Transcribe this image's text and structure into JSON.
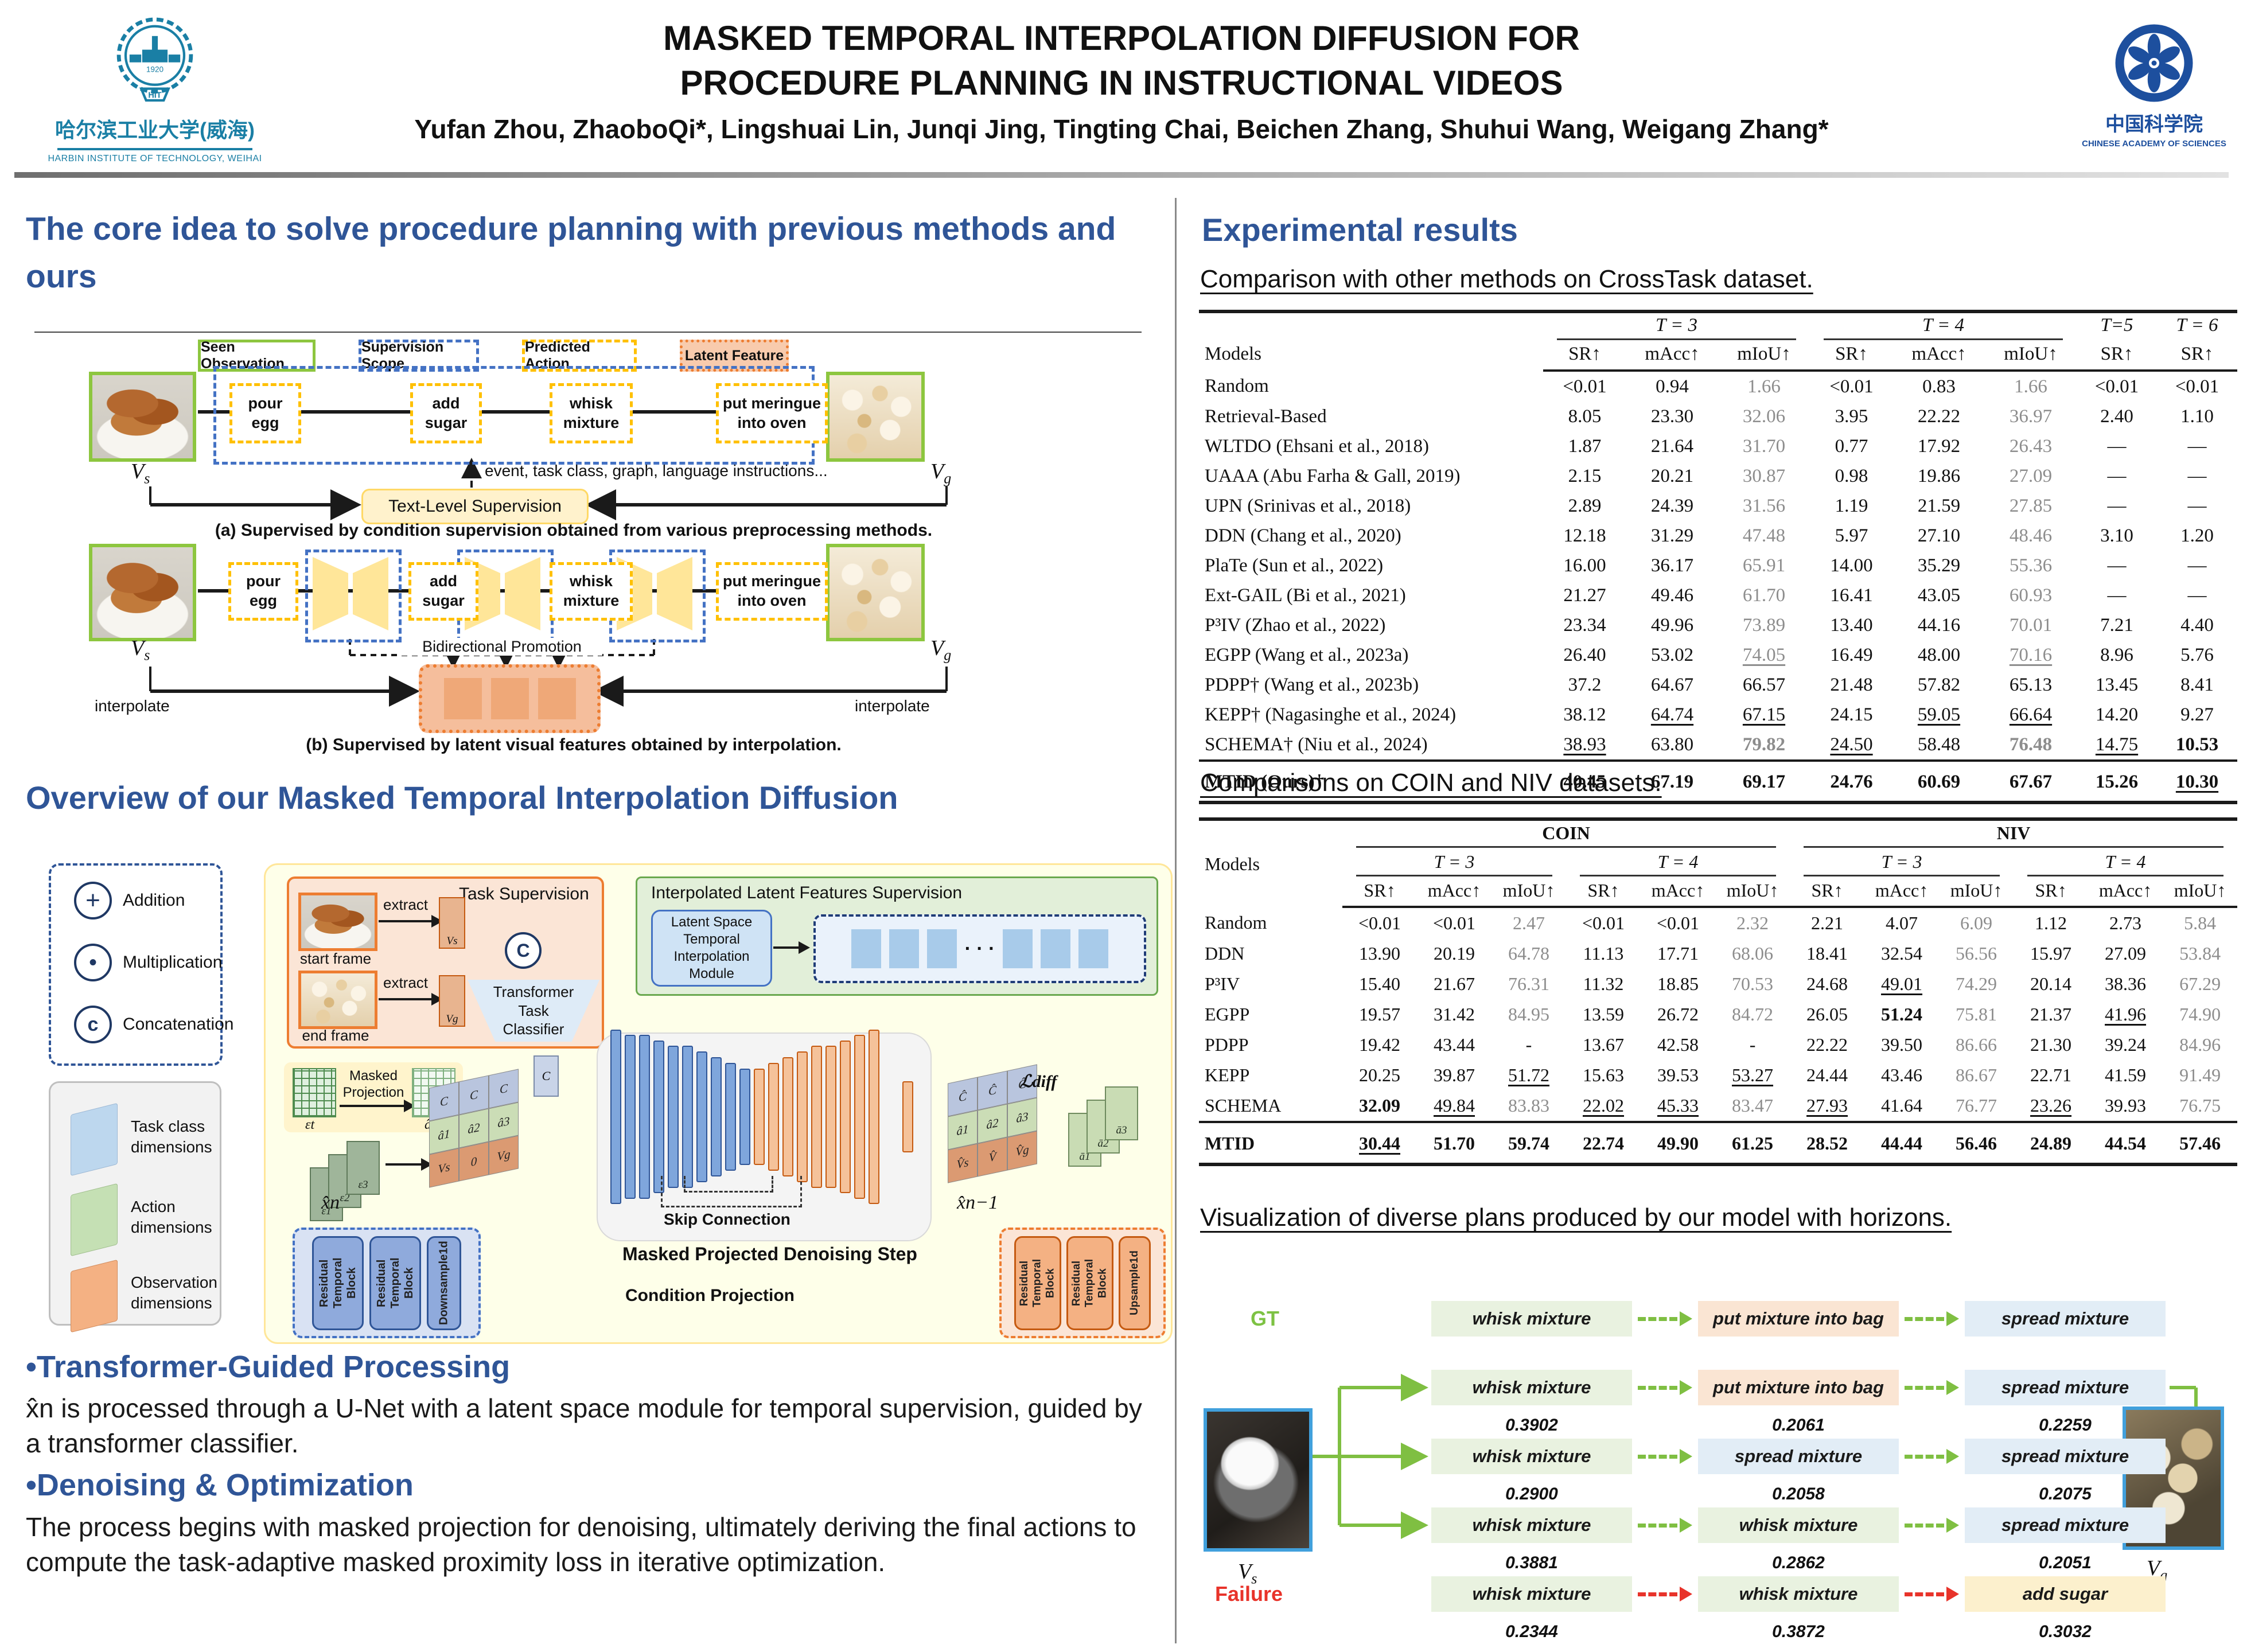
{
  "header": {
    "title_line1": "MASKED TEMPORAL INTERPOLATION DIFFUSION FOR",
    "title_line2": "PROCEDURE PLANNING IN INSTRUCTIONAL VIDEOS",
    "authors": "Yufan Zhou, ZhaoboQi*, Lingshuai Lin, Junqi Jing, Tingting Chai, Beichen Zhang, Shuhui Wang, Weigang Zhang*"
  },
  "logos": {
    "hit": {
      "cn": "哈尔滨工业大学(威海)",
      "en": "HARBIN INSTITUTE OF TECHNOLOGY, WEIHAI",
      "badge": "HIT",
      "year": "1920"
    },
    "cas": {
      "cn": "中国科学院",
      "en": "CHINESE ACADEMY OF SCIENCES"
    }
  },
  "labels": {
    "V": "V",
    "s": "s",
    "g": "g"
  },
  "left": {
    "heading1": "The core idea to solve procedure planning with previous methods and ours",
    "heading2": "Overview of our Masked Temporal Interpolation Diffusion",
    "fig_a": {
      "legend": [
        "Seen Observation",
        "Supervision Scope",
        "Predicted Action",
        "Latent Feature"
      ],
      "actions": [
        "pour\negg",
        "add\nsugar",
        "whisk\nmixture",
        "put meringue\ninto oven"
      ],
      "sup_text": "event, task class, graph, language instructions...",
      "text_level": "Text-Level Supervision",
      "caption": "(a) Supervised by condition supervision obtained from various preprocessing methods."
    },
    "fig_b": {
      "bidi": "Bidirectional Promotion",
      "interpolate": "interpolate",
      "caption": "(b) Supervised by latent visual features obtained by interpolation."
    },
    "overview": {
      "ops": [
        "Addition",
        "Multiplication",
        "Concatenation"
      ],
      "ops_syms": [
        "+",
        "•",
        "c"
      ],
      "dims": [
        "Task class\ndimensions",
        "Action\ndimensions",
        "Observation\ndimensions"
      ],
      "task_supervision": "Task Supervision",
      "start_frame": "start frame",
      "end_frame": "end frame",
      "extract": "extract",
      "classifier": "Transformer\nTask\nClassifier",
      "interp_sup": "Interpolated Latent Features Supervision",
      "latent_module": "Latent Space\nTemporal\nInterpolation\nModule",
      "masked_projection": "Masked\nProjection",
      "skip": "Skip Connection",
      "denoise": "Masked Projected Denoising Step",
      "cond": "Condition Projection",
      "rtb": "Residual\nTemporal\nBlock",
      "down": "Downsample1d",
      "up": "Upsample1d",
      "dots": "· · ·",
      "c_label": "C",
      "eps_t": "εt",
      "a_t": "ât",
      "eps": "ε",
      "xn": "x̂n",
      "xn1": "x̂n−1",
      "ldiff": "ℒdiff",
      "tile_vs": "Vs",
      "tile_vg": "Vg",
      "mat1": [
        [
          "C",
          "C",
          "C"
        ],
        [
          "â1",
          "â2",
          "â3"
        ],
        [
          "Vs",
          "0",
          "Vg"
        ]
      ],
      "mat2": [
        [
          "Ĉ",
          "Ĉ",
          "Ĉ"
        ],
        [
          "â1",
          "â2",
          "â3"
        ],
        [
          "V̂s",
          "V̂",
          "V̂g"
        ]
      ],
      "abar": [
        "ā1",
        "ā2",
        "ā3"
      ],
      "epsn": [
        "ε1",
        "ε2",
        "ε3"
      ]
    },
    "bullet1_title": "•Transformer-Guided Processing",
    "bullet1_body": "x̂n is processed through a U-Net with a latent space module for temporal supervision, guided by a transformer classifier.",
    "bullet2_title": "•Denoising & Optimization",
    "bullet2_body": "The process begins with masked projection for denoising, ultimately deriving the final actions to compute the task-adaptive masked proximity loss in iterative optimization."
  },
  "right": {
    "heading": "Experimental results",
    "sub1": "Comparison with other methods on CrossTask dataset.",
    "sub2": "Comparisons on COIN and NIV datasets.",
    "sub3": "Visualization of diverse plans produced by our model with horizons."
  },
  "tables": {
    "crosstask": {
      "models_label": "Models",
      "groups": [
        "T = 3",
        "T = 4",
        "T=5",
        "T = 6"
      ],
      "cols3": [
        "SR↑",
        "mAcc↑",
        "mIoU↑"
      ],
      "col_sr": "SR↑",
      "rows": [
        {
          "model": "Random",
          "cells": [
            "<0.01",
            "0.94",
            [
              "1.66",
              "g"
            ],
            "<0.01",
            "0.83",
            [
              "1.66",
              "g"
            ],
            "<0.01",
            "<0.01"
          ]
        },
        {
          "model": "Retrieval-Based",
          "cells": [
            "8.05",
            "23.30",
            [
              "32.06",
              "g"
            ],
            "3.95",
            "22.22",
            [
              "36.97",
              "g"
            ],
            "2.40",
            "1.10"
          ]
        },
        {
          "model": "WLTDO (Ehsani et al., 2018)",
          "cells": [
            "1.87",
            "21.64",
            [
              "31.70",
              "g"
            ],
            "0.77",
            "17.92",
            [
              "26.43",
              "g"
            ],
            "—",
            "—"
          ]
        },
        {
          "model": "UAAA (Abu Farha & Gall, 2019)",
          "cells": [
            "2.15",
            "20.21",
            [
              "30.87",
              "g"
            ],
            "0.98",
            "19.86",
            [
              "27.09",
              "g"
            ],
            "—",
            "—"
          ]
        },
        {
          "model": "UPN (Srinivas et al., 2018)",
          "cells": [
            "2.89",
            "24.39",
            [
              "31.56",
              "g"
            ],
            "1.19",
            "21.59",
            [
              "27.85",
              "g"
            ],
            "—",
            "—"
          ]
        },
        {
          "model": "DDN (Chang et al., 2020)",
          "cells": [
            "12.18",
            "31.29",
            [
              "47.48",
              "g"
            ],
            "5.97",
            "27.10",
            [
              "48.46",
              "g"
            ],
            "3.10",
            "1.20"
          ]
        },
        {
          "model": "PlaTe (Sun et al., 2022)",
          "cells": [
            "16.00",
            "36.17",
            [
              "65.91",
              "g"
            ],
            "14.00",
            "35.29",
            [
              "55.36",
              "g"
            ],
            "—",
            "—"
          ]
        },
        {
          "model": "Ext-GAIL (Bi et al., 2021)",
          "cells": [
            "21.27",
            "49.46",
            [
              "61.70",
              "g"
            ],
            "16.41",
            "43.05",
            [
              "60.93",
              "g"
            ],
            "—",
            "—"
          ]
        },
        {
          "model": "P³IV (Zhao et al., 2022)",
          "cells": [
            "23.34",
            "49.96",
            [
              "73.89",
              "g"
            ],
            "13.40",
            "44.16",
            [
              "70.01",
              "g"
            ],
            "7.21",
            "4.40"
          ]
        },
        {
          "model": "EGPP (Wang et al., 2023a)",
          "cells": [
            "26.40",
            "53.02",
            [
              "74.05",
              "gu"
            ],
            "16.49",
            "48.00",
            [
              "70.16",
              "gu"
            ],
            "8.96",
            "5.76"
          ]
        },
        {
          "model": "PDPP† (Wang et al., 2023b)",
          "cells": [
            "37.2",
            "64.67",
            "66.57",
            "21.48",
            "57.82",
            "65.13",
            "13.45",
            "8.41"
          ]
        },
        {
          "model": "KEPP† (Nagasinghe et al., 2024)",
          "cells": [
            "38.12",
            [
              "64.74",
              "u"
            ],
            [
              "67.15",
              "u"
            ],
            "24.15",
            [
              "59.05",
              "u"
            ],
            [
              "66.64",
              "u"
            ],
            "14.20",
            "9.27"
          ]
        },
        {
          "model": "SCHEMA† (Niu et al., 2024)",
          "cells": [
            [
              "38.93",
              "u"
            ],
            "63.80",
            [
              "79.82",
              "bg"
            ],
            [
              "24.50",
              "u"
            ],
            "58.48",
            [
              "76.48",
              "bg"
            ],
            [
              "14.75",
              "u"
            ],
            [
              "10.53",
              "b"
            ]
          ]
        }
      ],
      "final": {
        "model": "MTID (Ours)†",
        "cells": [
          [
            "40.45",
            "b"
          ],
          [
            "67.19",
            "b"
          ],
          [
            "69.17",
            "b"
          ],
          [
            "24.76",
            "b"
          ],
          [
            "60.69",
            "b"
          ],
          [
            "67.67",
            "b"
          ],
          [
            "15.26",
            "b"
          ],
          [
            "10.30",
            "u"
          ]
        ]
      }
    },
    "coin_niv": {
      "models_label": "Models",
      "datasets": [
        "COIN",
        "NIV"
      ],
      "groups": [
        "T = 3",
        "T = 4",
        "T = 3",
        "T = 4"
      ],
      "cols3": [
        "SR↑",
        "mAcc↑",
        "mIoU↑"
      ],
      "rows": [
        {
          "model": "Random",
          "cells": [
            "<0.01",
            "<0.01",
            [
              "2.47",
              "g"
            ],
            "<0.01",
            "<0.01",
            [
              "2.32",
              "g"
            ],
            "2.21",
            "4.07",
            [
              "6.09",
              "g"
            ],
            "1.12",
            "2.73",
            [
              "5.84",
              "g"
            ]
          ]
        },
        {
          "model": "DDN",
          "cells": [
            "13.90",
            "20.19",
            [
              "64.78",
              "g"
            ],
            "11.13",
            "17.71",
            [
              "68.06",
              "g"
            ],
            "18.41",
            "32.54",
            [
              "56.56",
              "g"
            ],
            "15.97",
            "27.09",
            [
              "53.84",
              "g"
            ]
          ]
        },
        {
          "model": "P³IV",
          "cells": [
            "15.40",
            "21.67",
            [
              "76.31",
              "g"
            ],
            "11.32",
            "18.85",
            [
              "70.53",
              "g"
            ],
            "24.68",
            [
              "49.01",
              "u"
            ],
            [
              "74.29",
              "g"
            ],
            "20.14",
            "38.36",
            [
              "67.29",
              "g"
            ]
          ]
        },
        {
          "model": "EGPP",
          "cells": [
            "19.57",
            "31.42",
            [
              "84.95",
              "g"
            ],
            "13.59",
            "26.72",
            [
              "84.72",
              "g"
            ],
            "26.05",
            [
              "51.24",
              "b"
            ],
            [
              "75.81",
              "g"
            ],
            "21.37",
            [
              "41.96",
              "u"
            ],
            [
              "74.90",
              "g"
            ]
          ]
        },
        {
          "model": "PDPP",
          "cells": [
            "19.42",
            "43.44",
            "-",
            "13.67",
            "42.58",
            "-",
            "22.22",
            "39.50",
            [
              "86.66",
              "g"
            ],
            "21.30",
            "39.24",
            [
              "84.96",
              "g"
            ]
          ]
        },
        {
          "model": "KEPP",
          "cells": [
            "20.25",
            "39.87",
            [
              "51.72",
              "u"
            ],
            "15.63",
            "39.53",
            [
              "53.27",
              "u"
            ],
            "24.44",
            "43.46",
            [
              "86.67",
              "g"
            ],
            "22.71",
            "41.59",
            [
              "91.49",
              "g"
            ]
          ]
        },
        {
          "model": "SCHEMA",
          "cells": [
            [
              "32.09",
              "b"
            ],
            [
              "49.84",
              "u"
            ],
            [
              "83.83",
              "g"
            ],
            [
              "22.02",
              "u"
            ],
            [
              "45.33",
              "u"
            ],
            [
              "83.47",
              "g"
            ],
            [
              "27.93",
              "u"
            ],
            "41.64",
            [
              "76.77",
              "g"
            ],
            [
              "23.26",
              "u"
            ],
            "39.93",
            [
              "76.75",
              "g"
            ]
          ]
        }
      ],
      "final": {
        "model": "MTID",
        "cells": [
          [
            "30.44",
            "u"
          ],
          [
            "51.70",
            "b"
          ],
          [
            "59.74",
            "b"
          ],
          [
            "22.74",
            "b"
          ],
          [
            "49.90",
            "b"
          ],
          [
            "61.25",
            "b"
          ],
          [
            "28.52",
            "b"
          ],
          "44.44",
          [
            "56.46",
            "b"
          ],
          [
            "24.89",
            "b"
          ],
          [
            "44.54",
            "b"
          ],
          [
            "57.46",
            "b"
          ]
        ]
      }
    }
  },
  "viz": {
    "gt_label": "GT",
    "failure_label": "Failure",
    "rows": [
      {
        "label": "GT",
        "type": "gt",
        "boxes": [
          [
            "whisk mixture",
            "green"
          ],
          [
            "put mixture into bag",
            "orange"
          ],
          [
            "spread mixture",
            "blue"
          ]
        ]
      },
      {
        "type": "plan",
        "boxes": [
          [
            "whisk mixture",
            "green"
          ],
          [
            "put mixture into bag",
            "orange"
          ],
          [
            "spread mixture",
            "blue"
          ]
        ],
        "probs": [
          "0.3902",
          "0.2061",
          "0.2259"
        ]
      },
      {
        "type": "plan",
        "boxes": [
          [
            "whisk mixture",
            "green"
          ],
          [
            "spread mixture",
            "blue"
          ],
          [
            "spread mixture",
            "blue"
          ]
        ],
        "probs": [
          "0.2900",
          "0.2058",
          "0.2075"
        ]
      },
      {
        "type": "plan",
        "boxes": [
          [
            "whisk mixture",
            "green"
          ],
          [
            "whisk mixture",
            "green"
          ],
          [
            "spread mixture",
            "blue"
          ]
        ],
        "probs": [
          "0.3881",
          "0.2862",
          "0.2051"
        ]
      },
      {
        "label": "Failure",
        "type": "failure",
        "boxes": [
          [
            "whisk mixture",
            "green"
          ],
          [
            "whisk mixture",
            "green"
          ],
          [
            "add sugar",
            "yellow"
          ]
        ],
        "probs": [
          "0.2344",
          "0.3872",
          "0.3032"
        ]
      }
    ]
  }
}
